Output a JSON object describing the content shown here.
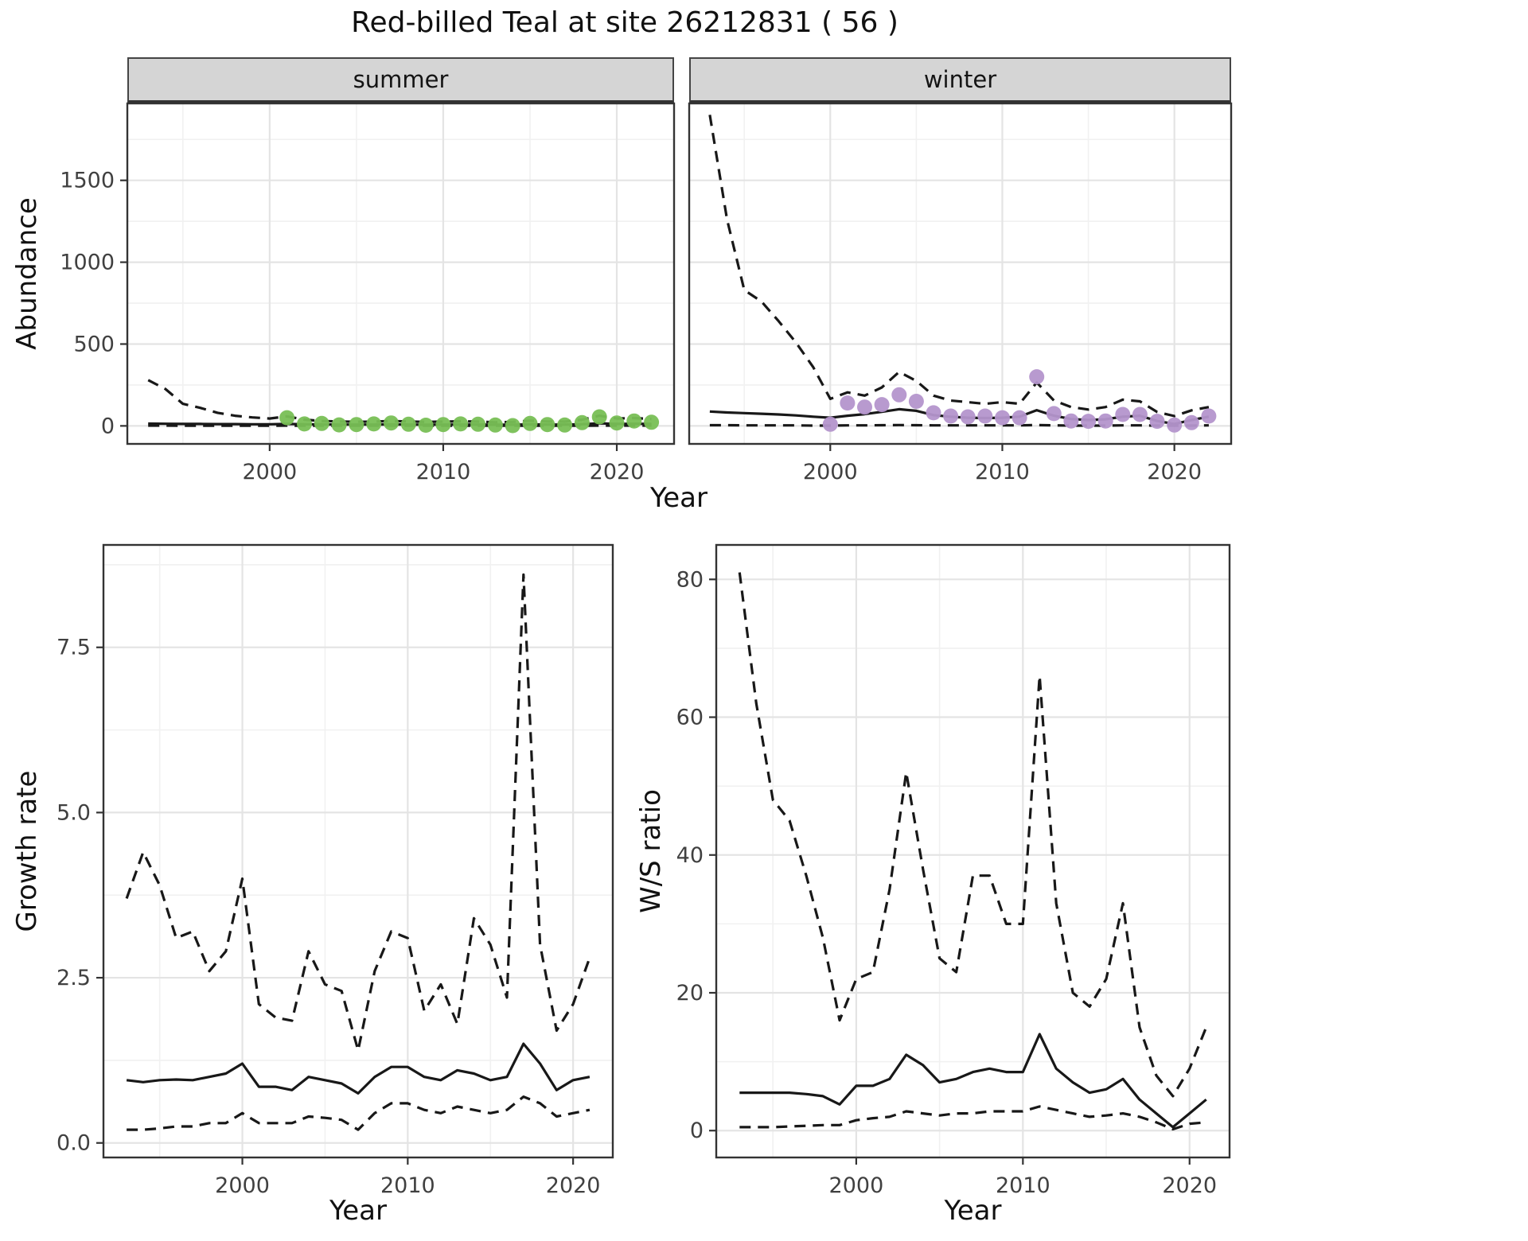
{
  "title": "Red-billed Teal at site 26212831 ( 56 )",
  "abundance": {
    "ylabel": "Abundance",
    "xlabel": "Year",
    "facets": [
      {
        "label": "summer"
      },
      {
        "label": "winter"
      }
    ]
  },
  "growth": {
    "ylabel": "Growth rate",
    "xlabel": "Year"
  },
  "ws": {
    "ylabel": "W/S ratio",
    "xlabel": "Year"
  },
  "colors": {
    "summer_points": "#78bf55",
    "winter_points": "#b495cc",
    "line": "#181818",
    "strip_background": "#d5d5d5"
  },
  "chart_data": [
    {
      "id": "summer-abundance",
      "type": "line",
      "facet": "summer",
      "xlabel": "Year",
      "ylabel": "Abundance",
      "xlim": [
        1991.8,
        2023.3
      ],
      "ylim": [
        -110,
        1970
      ],
      "xticks": [
        2000,
        2010,
        2020
      ],
      "xtick_labels": [
        "2000",
        "2010",
        "2020"
      ],
      "yticks": [
        0,
        500,
        1000,
        1500
      ],
      "ytick_labels": [
        "0",
        "500",
        "1000",
        "1500"
      ],
      "x": [
        1993,
        1994,
        1995,
        1996,
        1997,
        1998,
        1999,
        2000,
        2001,
        2002,
        2003,
        2004,
        2005,
        2006,
        2007,
        2008,
        2009,
        2010,
        2011,
        2012,
        2013,
        2014,
        2015,
        2016,
        2017,
        2018,
        2019,
        2020,
        2021,
        2022
      ],
      "series": [
        {
          "name": "upper-ci",
          "style": "dashed",
          "values": [
            280,
            225,
            135,
            110,
            80,
            62,
            52,
            45,
            58,
            38,
            30,
            27,
            25,
            26,
            30,
            27,
            24,
            26,
            28,
            26,
            22,
            24,
            32,
            27,
            26,
            38,
            62,
            45,
            48,
            42
          ]
        },
        {
          "name": "median",
          "style": "solid",
          "values": [
            14,
            13,
            12,
            12,
            11,
            11,
            10,
            10,
            12,
            10,
            9,
            8,
            8,
            8,
            9,
            8,
            7,
            8,
            8,
            8,
            7,
            7,
            9,
            8,
            8,
            10,
            16,
            12,
            13,
            12
          ]
        },
        {
          "name": "lower-ci",
          "style": "dashed",
          "values": [
            2,
            2,
            1,
            1,
            1,
            1,
            1,
            1,
            2,
            1,
            1,
            1,
            1,
            1,
            1,
            1,
            1,
            1,
            1,
            1,
            1,
            1,
            1,
            1,
            1,
            1,
            2,
            2,
            2,
            2
          ]
        }
      ],
      "points": {
        "name": "observed-counts-summer",
        "color": "#78bf55",
        "x": [
          2001,
          2002,
          2003,
          2004,
          2005,
          2006,
          2007,
          2008,
          2009,
          2010,
          2011,
          2012,
          2013,
          2014,
          2015,
          2016,
          2017,
          2018,
          2019,
          2020,
          2021,
          2022
        ],
        "y": [
          50,
          12,
          15,
          6,
          8,
          12,
          18,
          10,
          4,
          8,
          12,
          10,
          5,
          2,
          15,
          8,
          5,
          20,
          55,
          18,
          30,
          22
        ]
      }
    },
    {
      "id": "winter-abundance",
      "type": "line",
      "facet": "winter",
      "xlabel": "Year",
      "ylabel": "Abundance",
      "xlim": [
        1991.8,
        2023.3
      ],
      "ylim": [
        -110,
        1970
      ],
      "xticks": [
        2000,
        2010,
        2020
      ],
      "xtick_labels": [
        "2000",
        "2010",
        "2020"
      ],
      "yticks": [
        0,
        500,
        1000,
        1500
      ],
      "ytick_labels": [
        "0",
        "500",
        "1000",
        "1500"
      ],
      "x": [
        1993,
        1994,
        1995,
        1996,
        1997,
        1998,
        1999,
        2000,
        2001,
        2002,
        2003,
        2004,
        2005,
        2006,
        2007,
        2008,
        2009,
        2010,
        2011,
        2012,
        2013,
        2014,
        2015,
        2016,
        2017,
        2018,
        2019,
        2020,
        2021,
        2022
      ],
      "series": [
        {
          "name": "upper-ci",
          "style": "dashed",
          "values": [
            1900,
            1260,
            830,
            760,
            640,
            510,
            360,
            165,
            205,
            185,
            235,
            330,
            275,
            185,
            155,
            145,
            135,
            145,
            135,
            265,
            155,
            115,
            100,
            115,
            160,
            150,
            85,
            60,
            95,
            115
          ]
        },
        {
          "name": "median",
          "style": "solid",
          "values": [
            88,
            82,
            78,
            74,
            70,
            64,
            56,
            50,
            62,
            72,
            86,
            102,
            92,
            66,
            56,
            50,
            48,
            50,
            56,
            96,
            62,
            42,
            36,
            40,
            56,
            62,
            30,
            12,
            36,
            56
          ]
        },
        {
          "name": "lower-ci",
          "style": "dashed",
          "values": [
            4,
            4,
            3,
            3,
            3,
            3,
            2,
            2,
            3,
            3,
            4,
            5,
            4,
            3,
            3,
            3,
            3,
            3,
            3,
            5,
            3,
            2,
            2,
            2,
            3,
            3,
            2,
            1,
            2,
            3
          ]
        }
      ],
      "points": {
        "name": "observed-counts-winter",
        "color": "#b495cc",
        "x": [
          2000,
          2001,
          2002,
          2003,
          2004,
          2005,
          2006,
          2007,
          2008,
          2009,
          2010,
          2011,
          2012,
          2013,
          2014,
          2015,
          2016,
          2017,
          2018,
          2019,
          2020,
          2021,
          2022
        ],
        "y": [
          10,
          140,
          115,
          130,
          190,
          150,
          80,
          60,
          55,
          60,
          50,
          50,
          300,
          75,
          30,
          28,
          30,
          70,
          70,
          28,
          5,
          20,
          60
        ]
      }
    },
    {
      "id": "growth-rate",
      "type": "line",
      "xlabel": "Year",
      "ylabel": "Growth rate",
      "xlim": [
        1991.6,
        2022.4
      ],
      "ylim": [
        -0.22,
        9.05
      ],
      "xticks": [
        2000,
        2010,
        2020
      ],
      "xtick_labels": [
        "2000",
        "2010",
        "2020"
      ],
      "yticks": [
        0,
        2.5,
        5,
        7.5
      ],
      "ytick_labels": [
        "0.0",
        "2.5",
        "5.0",
        "7.5"
      ],
      "x": [
        1993,
        1994,
        1995,
        1996,
        1997,
        1998,
        1999,
        2000,
        2001,
        2002,
        2003,
        2004,
        2005,
        2006,
        2007,
        2008,
        2009,
        2010,
        2011,
        2012,
        2013,
        2014,
        2015,
        2016,
        2017,
        2018,
        2019,
        2020,
        2021
      ],
      "series": [
        {
          "name": "upper-ci",
          "style": "dashed",
          "values": [
            3.7,
            4.4,
            3.9,
            3.1,
            3.2,
            2.6,
            2.9,
            4.0,
            2.1,
            1.9,
            1.85,
            2.9,
            2.4,
            2.3,
            1.4,
            2.6,
            3.2,
            3.1,
            2.0,
            2.4,
            1.8,
            3.4,
            3.0,
            2.2,
            8.6,
            3.0,
            1.7,
            2.1,
            2.8
          ]
        },
        {
          "name": "median",
          "style": "solid",
          "values": [
            0.95,
            0.92,
            0.95,
            0.96,
            0.95,
            1.0,
            1.05,
            1.2,
            0.85,
            0.85,
            0.8,
            1.0,
            0.95,
            0.9,
            0.75,
            1.0,
            1.15,
            1.15,
            1.0,
            0.95,
            1.1,
            1.05,
            0.95,
            1.0,
            1.5,
            1.2,
            0.8,
            0.95,
            1.0
          ]
        },
        {
          "name": "lower-ci",
          "style": "dashed",
          "values": [
            0.2,
            0.2,
            0.22,
            0.25,
            0.25,
            0.3,
            0.3,
            0.45,
            0.3,
            0.3,
            0.3,
            0.4,
            0.38,
            0.35,
            0.2,
            0.45,
            0.6,
            0.6,
            0.5,
            0.45,
            0.55,
            0.5,
            0.45,
            0.5,
            0.7,
            0.6,
            0.4,
            0.45,
            0.5
          ]
        }
      ],
      "points": null
    },
    {
      "id": "ws-ratio",
      "type": "line",
      "xlabel": "Year",
      "ylabel": "W/S ratio",
      "xlim": [
        1991.6,
        2022.4
      ],
      "ylim": [
        -3.9,
        85
      ],
      "xticks": [
        2000,
        2010,
        2020
      ],
      "xtick_labels": [
        "2000",
        "2010",
        "2020"
      ],
      "yticks": [
        0,
        20,
        40,
        60,
        80
      ],
      "ytick_labels": [
        "0",
        "20",
        "40",
        "60",
        "80"
      ],
      "x": [
        1993,
        1994,
        1995,
        1996,
        1997,
        1998,
        1999,
        2000,
        2001,
        2002,
        2003,
        2004,
        2005,
        2006,
        2007,
        2008,
        2009,
        2010,
        2011,
        2012,
        2013,
        2014,
        2015,
        2016,
        2017,
        2018,
        2019,
        2020,
        2021
      ],
      "series": [
        {
          "name": "upper-ci",
          "style": "dashed",
          "values": [
            81,
            62,
            48,
            45,
            37,
            28,
            16,
            22,
            23,
            35,
            52,
            38,
            25,
            23,
            37,
            37,
            30,
            30,
            66,
            33,
            20,
            18,
            22,
            33,
            15,
            8,
            5,
            9,
            15
          ]
        },
        {
          "name": "median",
          "style": "solid",
          "values": [
            5.5,
            5.5,
            5.5,
            5.5,
            5.3,
            5.0,
            3.8,
            6.5,
            6.5,
            7.5,
            11,
            9.5,
            7,
            7.5,
            8.5,
            9,
            8.5,
            8.5,
            14,
            9,
            7,
            5.5,
            6,
            7.5,
            4.5,
            2.5,
            0.5,
            2.5,
            4.5
          ]
        },
        {
          "name": "lower-ci",
          "style": "dashed",
          "values": [
            0.5,
            0.5,
            0.5,
            0.6,
            0.7,
            0.8,
            0.8,
            1.5,
            1.8,
            2.0,
            2.8,
            2.5,
            2.2,
            2.5,
            2.5,
            2.8,
            2.8,
            2.8,
            3.5,
            3.0,
            2.5,
            2.0,
            2.2,
            2.5,
            2.0,
            1.2,
            0.2,
            1.0,
            1.2
          ]
        }
      ],
      "points": null
    }
  ]
}
